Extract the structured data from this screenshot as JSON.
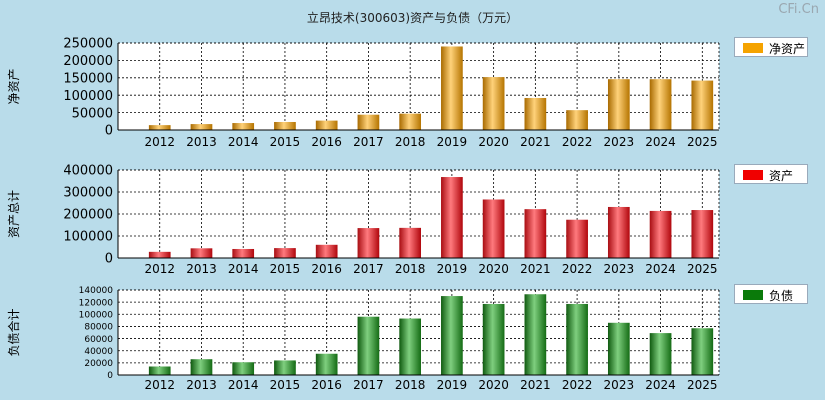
{
  "title": "立昂技术(300603)资产与负债（万元）",
  "watermark": "CFi.Cn",
  "colors": {
    "background": "#b9dcea",
    "plot_bg": "#ffffff"
  },
  "chart_data": [
    {
      "type": "bar",
      "ylabel": "净资产",
      "legend": "净资产",
      "legend_position": "right",
      "color": "#f5a300",
      "grid": true,
      "categories": [
        "2012",
        "2013",
        "2014",
        "2015",
        "2016",
        "2017",
        "2018",
        "2019",
        "2020",
        "2021",
        "2022",
        "2023",
        "2024",
        "2025"
      ],
      "values": [
        14000,
        17000,
        20000,
        23000,
        27000,
        44000,
        47000,
        240000,
        152000,
        92000,
        57000,
        146000,
        146000,
        142000
      ],
      "ylim": [
        0,
        250000
      ],
      "yticks": [
        0,
        50000,
        100000,
        150000,
        200000,
        250000
      ]
    },
    {
      "type": "bar",
      "ylabel": "资产总计",
      "legend": "资产",
      "legend_position": "right",
      "color": "#e8161d",
      "grid": true,
      "categories": [
        "2012",
        "2013",
        "2014",
        "2015",
        "2016",
        "2017",
        "2018",
        "2019",
        "2020",
        "2021",
        "2022",
        "2023",
        "2024",
        "2025"
      ],
      "values": [
        28000,
        44000,
        41000,
        45000,
        60000,
        136000,
        137000,
        368000,
        266000,
        222000,
        174000,
        232000,
        214000,
        218000
      ],
      "ylim": [
        0,
        400000
      ],
      "yticks": [
        0,
        100000,
        200000,
        300000,
        400000
      ]
    },
    {
      "type": "bar",
      "ylabel": "负债合计",
      "legend": "负债",
      "legend_position": "right",
      "color": "#1f8a1f",
      "grid": true,
      "categories": [
        "2012",
        "2013",
        "2014",
        "2015",
        "2016",
        "2017",
        "2018",
        "2019",
        "2020",
        "2021",
        "2022",
        "2023",
        "2024",
        "2025"
      ],
      "values": [
        14000,
        26000,
        21000,
        24000,
        35000,
        96000,
        93000,
        130000,
        117000,
        133000,
        117000,
        86000,
        69000,
        77000
      ],
      "ylim": [
        0,
        140000
      ],
      "yticks": [
        0,
        20000,
        40000,
        60000,
        80000,
        100000,
        120000,
        140000
      ]
    }
  ]
}
